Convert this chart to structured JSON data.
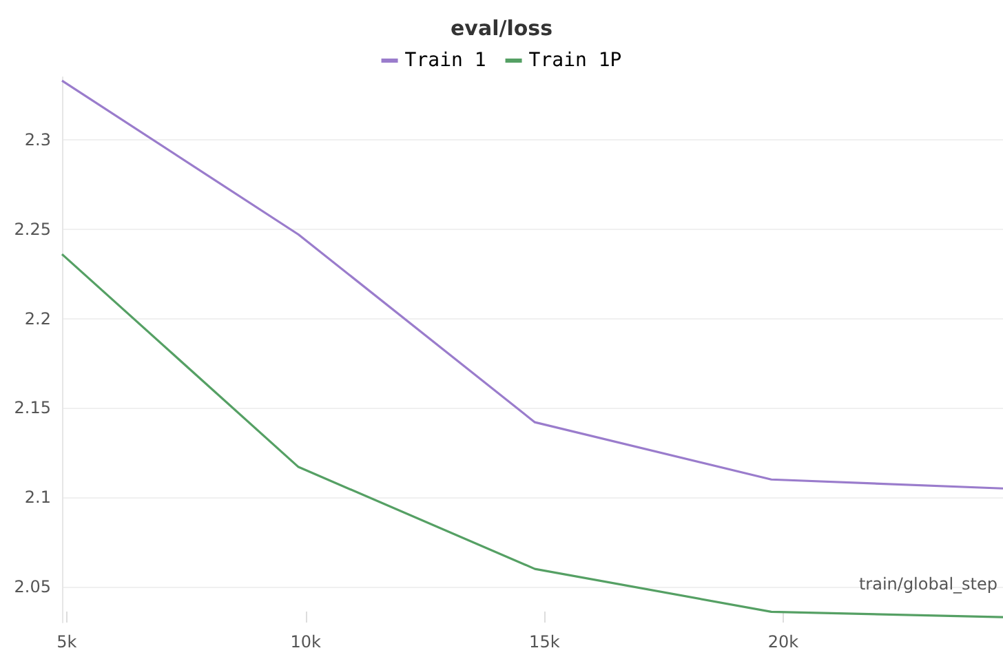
{
  "chart_data": {
    "type": "line",
    "title": "eval/loss",
    "xlabel": "train/global_step",
    "x": [
      4900,
      9850,
      14800,
      19750,
      24600
    ],
    "series": [
      {
        "name": "Train 1",
        "color": "#9a7ccc",
        "values": [
          2.333,
          2.247,
          2.142,
          2.11,
          2.105
        ]
      },
      {
        "name": "Train 1P",
        "color": "#55a064",
        "values": [
          2.236,
          2.117,
          2.06,
          2.036,
          2.033
        ]
      }
    ],
    "xlim": [
      4900,
      24600
    ],
    "xticks": [
      {
        "value": 5000,
        "label": "5k"
      },
      {
        "value": 10000,
        "label": "10k"
      },
      {
        "value": 15000,
        "label": "15k"
      },
      {
        "value": 20000,
        "label": "20k"
      }
    ],
    "ylim": [
      2.03,
      2.335
    ],
    "yticks": [
      2.05,
      2.1,
      2.15,
      2.2,
      2.25,
      2.3
    ],
    "grid": "y",
    "legend": "top",
    "marker": "none",
    "line_style": "solid"
  }
}
